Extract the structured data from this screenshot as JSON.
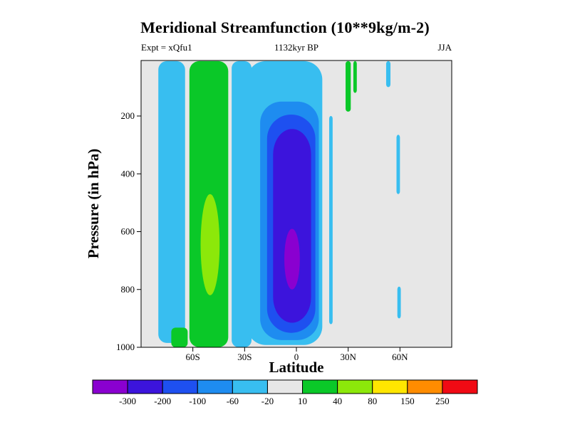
{
  "chart_data": {
    "type": "contour",
    "title": "Meridional Streamfunction (10**9kg/m-2)",
    "subtitle_left": "Expt = xQfu1",
    "subtitle_center": "1132kyr BP",
    "subtitle_right": "JJA",
    "xlabel": "Latitude",
    "ylabel": "Pressure (in hPa)",
    "units": "10**9 kg/m-2",
    "x_range_deg": [
      -90,
      90
    ],
    "pressure_range_hpa": [
      8,
      1000
    ],
    "x_ticks": [
      {
        "value": -60,
        "label": "60S"
      },
      {
        "value": -30,
        "label": "30S"
      },
      {
        "value": 0,
        "label": "0"
      },
      {
        "value": 30,
        "label": "30N"
      },
      {
        "value": 60,
        "label": "60N"
      }
    ],
    "y_ticks": [
      {
        "value": 200,
        "label": "200"
      },
      {
        "value": 400,
        "label": "400"
      },
      {
        "value": 600,
        "label": "600"
      },
      {
        "value": 800,
        "label": "800"
      },
      {
        "value": 1000,
        "label": "1000"
      }
    ],
    "background_color": "#e7e7e7",
    "colorbar": {
      "levels": [
        -300,
        -200,
        -100,
        -60,
        -20,
        10,
        40,
        80,
        150,
        250
      ],
      "colors": [
        "#8a00d0",
        "#3c14dc",
        "#1e50f0",
        "#1e8cf0",
        "#38bef0",
        "#e7e7e7",
        "#0ac828",
        "#8ce80a",
        "#ffe600",
        "#ff8c00",
        "#f00a14"
      ]
    },
    "features": [
      {
        "name": "antarctic-cell-band",
        "shape": "rect",
        "color": 4,
        "levels": "-60 to -20",
        "lat": [
          -80,
          -64.5
        ],
        "p": [
          10,
          985
        ],
        "r": 12
      },
      {
        "name": "antarctic-bottom-positive",
        "shape": "rect",
        "color": 6,
        "levels": "10 to 40",
        "lat": [
          -72.5,
          -63
        ],
        "p": [
          932,
          1000
        ],
        "r": 6
      },
      {
        "name": "southern-ferrel-band",
        "shape": "rect",
        "color": 6,
        "levels": "10 to 40",
        "lat": [
          -62,
          -39.5
        ],
        "p": [
          10,
          1000
        ],
        "r": 14
      },
      {
        "name": "southern-ferrel-core",
        "shape": "ellipse",
        "color": 7,
        "levels": "40 to 80",
        "lat": [
          -55.5,
          -44.5
        ],
        "p": [
          470,
          820
        ]
      },
      {
        "name": "hadley-west-band",
        "shape": "rect",
        "color": 4,
        "levels": "-60 to -20",
        "lat": [
          -37.5,
          -26
        ],
        "p": [
          10,
          1000
        ],
        "r": 10
      },
      {
        "name": "hadley-outer",
        "shape": "rect",
        "color": 4,
        "levels": "-60 to -20",
        "lat": [
          -28.5,
          15
        ],
        "p": [
          10,
          992
        ],
        "r": 26
      },
      {
        "name": "hadley-m100",
        "shape": "rect",
        "color": 3,
        "levels": "-100 to -60",
        "lat": [
          -21,
          13
        ],
        "p": [
          150,
          975
        ],
        "r": 30
      },
      {
        "name": "hadley-m200",
        "shape": "rect",
        "color": 2,
        "levels": "-200 to -100",
        "lat": [
          -17,
          11
        ],
        "p": [
          195,
          950
        ],
        "r": 34
      },
      {
        "name": "hadley-m300",
        "shape": "rect",
        "color": 1,
        "levels": "-300 to -200",
        "lat": [
          -13.5,
          8.5
        ],
        "p": [
          245,
          915
        ],
        "r": 36
      },
      {
        "name": "hadley-core",
        "shape": "ellipse",
        "color": 0,
        "levels": "below -300",
        "lat": [
          -7,
          2
        ],
        "p": [
          590,
          800
        ]
      },
      {
        "name": "n20-column",
        "shape": "rect",
        "color": 4,
        "levels": "-60 to -20",
        "lat": [
          19,
          21
        ],
        "p": [
          200,
          920
        ],
        "r": 4
      },
      {
        "name": "n30-top-streak",
        "shape": "rect",
        "color": 6,
        "levels": "10 to 40",
        "lat": [
          28.5,
          31.5
        ],
        "p": [
          10,
          185
        ],
        "r": 4
      },
      {
        "name": "n34-top-streak",
        "shape": "rect",
        "color": 6,
        "levels": "10 to 40",
        "lat": [
          33,
          35
        ],
        "p": [
          10,
          120
        ],
        "r": 4
      },
      {
        "name": "n53-top-streak",
        "shape": "rect",
        "color": 4,
        "levels": "-60 to -20",
        "lat": [
          52,
          54.5
        ],
        "p": [
          10,
          100
        ],
        "r": 4
      },
      {
        "name": "n60-mid-streak",
        "shape": "rect",
        "color": 4,
        "levels": "-60 to -20",
        "lat": [
          58,
          60
        ],
        "p": [
          265,
          470
        ],
        "r": 4
      },
      {
        "name": "n60-low-streak",
        "shape": "rect",
        "color": 4,
        "levels": "-60 to -20",
        "lat": [
          58.5,
          60.5
        ],
        "p": [
          790,
          900
        ],
        "r": 4
      }
    ]
  }
}
